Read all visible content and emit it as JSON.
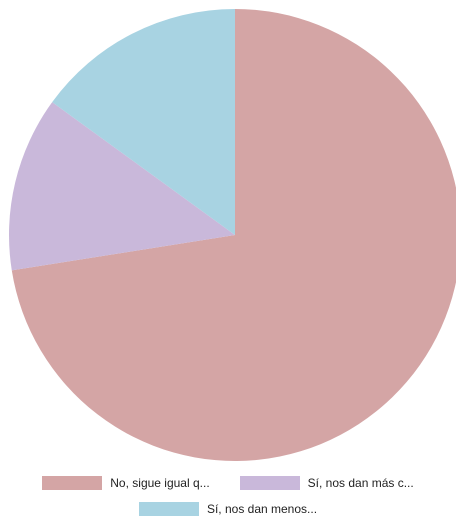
{
  "chart_data": {
    "type": "pie",
    "title": "",
    "slices": [
      {
        "label": "No, sigue igual q...",
        "value": 72.5,
        "color": "#d4a5a5"
      },
      {
        "label": "Sí, nos dan más c...",
        "value": 12.5,
        "color": "#c9b8da"
      },
      {
        "label": "Sí, nos dan menos...",
        "value": 15.0,
        "color": "#a8d3e2"
      }
    ],
    "legend_position": "bottom",
    "start_angle_deg": 0,
    "direction": "clockwise"
  }
}
